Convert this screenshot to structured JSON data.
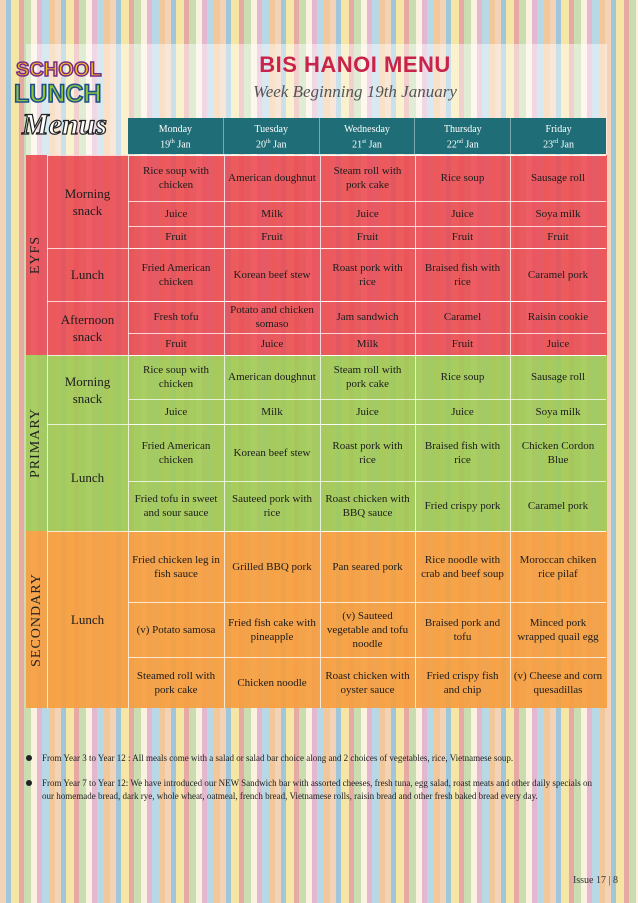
{
  "title": "BIS HANOI MENU",
  "subtitle": "Week Beginning 19th January",
  "logo": {
    "line1": "SCHOOL",
    "line2": "LUNCH",
    "line3": "Menus"
  },
  "days": [
    {
      "name": "Monday",
      "num": "19",
      "suf": "th",
      "mon": "Jan"
    },
    {
      "name": "Tuesday",
      "num": "20",
      "suf": "th",
      "mon": "Jan"
    },
    {
      "name": "Wednesday",
      "num": "21",
      "suf": "st",
      "mon": "Jan"
    },
    {
      "name": "Thursday",
      "num": "22",
      "suf": "nd",
      "mon": "Jan"
    },
    {
      "name": "Friday",
      "num": "23",
      "suf": "rd",
      "mon": "Jan"
    }
  ],
  "sections": {
    "eyfs": "EYFS",
    "primary": "PRIMARY",
    "secondary": "SECONDARY"
  },
  "meals": {
    "morning_snack": "Morning snack",
    "lunch": "Lunch",
    "afternoon_snack": "Afternoon snack"
  },
  "rows": {
    "eyfs_ms1": [
      "Rice soup with chicken",
      "American doughnut",
      "Steam roll with pork cake",
      "Rice soup",
      "Sausage roll"
    ],
    "eyfs_ms2": [
      "Juice",
      "Milk",
      "Juice",
      "Juice",
      "Soya milk"
    ],
    "eyfs_ms3": [
      "Fruit",
      "Fruit",
      "Fruit",
      "Fruit",
      "Fruit"
    ],
    "eyfs_lunch": [
      "Fried American chicken",
      "Korean beef stew",
      "Roast pork with rice",
      "Braised fish with rice",
      "Caramel pork"
    ],
    "eyfs_as1": [
      "Fresh tofu",
      "Potato and chicken somaso",
      "Jam sandwich",
      "Caramel",
      "Raisin cookie"
    ],
    "eyfs_as2": [
      "Fruit",
      "Juice",
      "Milk",
      "Fruit",
      "Juice"
    ],
    "prim_ms1": [
      "Rice soup with chicken",
      "American doughnut",
      "Steam roll with pork cake",
      "Rice soup",
      "Sausage roll"
    ],
    "prim_ms2": [
      "Juice",
      "Milk",
      "Juice",
      "Juice",
      "Soya milk"
    ],
    "prim_l1": [
      "Fried American chicken",
      "Korean beef stew",
      "Roast pork with rice",
      "Braised fish with rice",
      "Chicken Cordon Blue"
    ],
    "prim_l2": [
      "Fried tofu in sweet and sour sauce",
      "Sauteed pork with rice",
      "Roast chicken with BBQ sauce",
      "Fried crispy pork",
      "Caramel pork"
    ],
    "sec_l1": [
      "Fried chicken leg in fish sauce",
      "Grilled BBQ pork",
      "Pan seared pork",
      "Rice noodle with crab and beef soup",
      "Moroccan chiken rice pilaf"
    ],
    "sec_l2": [
      "(v) Potato samosa",
      "Fried fish cake with pineapple",
      "(v) Sauteed vegetable and tofu noodle",
      "Braised pork and tofu",
      "Minced pork wrapped quail egg"
    ],
    "sec_l3": [
      "Steamed roll with pork cake",
      "Chicken noodle",
      "Roast chicken with oyster sauce",
      "Fried crispy fish and chip",
      "(v) Cheese and corn quesadillas"
    ]
  },
  "notes": [
    "From Year 3 to Year 12 : All meals come with a salad or salad bar choice along and  2 choices of vegetables, rice, Vietnamese soup.",
    "From Year 7 to Year 12: We have introduced our NEW Sandwich bar with assorted cheeses, fresh tuna, egg salad, roast meats and other daily specials on our homemade bread, dark rye, whole wheat, oatmeal, french bread, Vietnamese rolls, raisin bread and other fresh baked bread every day."
  ],
  "issue": "Issue 17 | 8"
}
